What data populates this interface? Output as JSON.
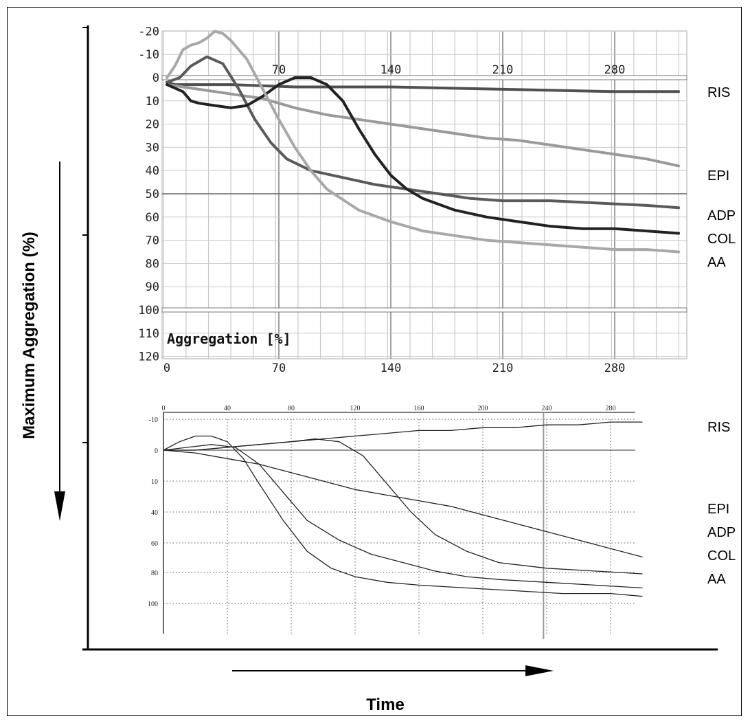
{
  "outer": {
    "ylabel": "Maximum  Aggregation (%)",
    "xlabel": "Time"
  },
  "chart_data": [
    {
      "type": "line",
      "x_ticks_top": [
        "70",
        "140",
        "210",
        "280"
      ],
      "x_ticks_bottom": [
        "0",
        "70",
        "140",
        "210",
        "280"
      ],
      "y_ticks": [
        "-20",
        "-10",
        "0",
        "10",
        "20",
        "30",
        "40",
        "50",
        "60",
        "70",
        "80",
        "90",
        "100",
        "110",
        "120"
      ],
      "y_axis_label": "Aggregation [%]",
      "xlim": [
        0,
        320
      ],
      "ylim": [
        -20,
        120
      ],
      "grid": true,
      "series": [
        {
          "name": "RIS",
          "color": "#505050",
          "x": [
            0,
            5,
            10,
            20,
            40,
            80,
            140,
            210,
            280,
            320
          ],
          "y": [
            2,
            3,
            3,
            3,
            3,
            4,
            4,
            5,
            6,
            6
          ]
        },
        {
          "name": "EPI",
          "color": "#9a9a9a",
          "x": [
            0,
            10,
            20,
            40,
            60,
            80,
            100,
            120,
            140,
            160,
            180,
            200,
            220,
            240,
            260,
            280,
            300,
            320
          ],
          "y": [
            3,
            4,
            5,
            7,
            9,
            13,
            16,
            18,
            20,
            22,
            24,
            26,
            27,
            29,
            31,
            33,
            35,
            38
          ]
        },
        {
          "name": "ADP",
          "color": "#5a5a5a",
          "x": [
            0,
            8,
            15,
            25,
            35,
            45,
            55,
            65,
            75,
            90,
            110,
            130,
            150,
            170,
            190,
            210,
            240,
            270,
            300,
            320
          ],
          "y": [
            2,
            0,
            -5,
            -9,
            -6,
            5,
            18,
            28,
            35,
            40,
            43,
            46,
            48,
            50,
            52,
            53,
            53,
            54,
            55,
            56
          ]
        },
        {
          "name": "COL",
          "color": "#222222",
          "x": [
            0,
            10,
            15,
            20,
            30,
            40,
            50,
            60,
            70,
            80,
            90,
            100,
            110,
            120,
            130,
            140,
            150,
            160,
            180,
            200,
            220,
            240,
            260,
            280,
            300,
            320
          ],
          "y": [
            3,
            6,
            10,
            11,
            12,
            13,
            12,
            8,
            3,
            0,
            0,
            3,
            10,
            22,
            33,
            42,
            48,
            52,
            57,
            60,
            62,
            64,
            65,
            65,
            66,
            67
          ]
        },
        {
          "name": "AA",
          "color": "#a8a8a8",
          "x": [
            0,
            5,
            10,
            15,
            20,
            25,
            30,
            35,
            40,
            50,
            60,
            70,
            80,
            90,
            100,
            120,
            140,
            160,
            180,
            200,
            220,
            240,
            260,
            280,
            300,
            320
          ],
          "y": [
            0,
            -5,
            -12,
            -14,
            -15,
            -17,
            -20,
            -19,
            -16,
            -8,
            5,
            18,
            30,
            40,
            48,
            57,
            62,
            66,
            68,
            70,
            71,
            72,
            73,
            74,
            74,
            75
          ]
        }
      ],
      "labels": [
        "RIS",
        "EPI",
        "ADP",
        "COL",
        "AA"
      ]
    },
    {
      "type": "line",
      "x_ticks": [
        "0",
        "40",
        "80",
        "120",
        "160",
        "200",
        "240",
        "280"
      ],
      "y_ticks": [
        "-10",
        "0",
        "10",
        "40",
        "60",
        "80",
        "100"
      ],
      "xlim": [
        0,
        300
      ],
      "grid": true,
      "series": [
        {
          "name": "RIS",
          "x": [
            0,
            20,
            40,
            60,
            80,
            100,
            120,
            140,
            160,
            180,
            200,
            220,
            240,
            260,
            280,
            300
          ],
          "y": [
            0,
            0,
            -1,
            -2,
            -3,
            -4,
            -5,
            -6,
            -7,
            -7,
            -8,
            -8,
            -9,
            -9,
            -10,
            -10
          ]
        },
        {
          "name": "EPI",
          "x": [
            0,
            20,
            40,
            60,
            80,
            100,
            120,
            140,
            160,
            180,
            200,
            220,
            240,
            260,
            280,
            300
          ],
          "y": [
            0,
            1,
            3,
            5,
            8,
            11,
            14,
            16,
            18,
            20,
            23,
            26,
            29,
            32,
            35,
            38
          ]
        },
        {
          "name": "ADP",
          "x": [
            0,
            15,
            30,
            45,
            60,
            75,
            90,
            110,
            130,
            150,
            170,
            190,
            210,
            240,
            270,
            300
          ],
          "y": [
            0,
            -1,
            -2,
            -1,
            5,
            15,
            25,
            32,
            37,
            40,
            43,
            45,
            46,
            47,
            48,
            49
          ]
        },
        {
          "name": "COL",
          "x": [
            0,
            20,
            40,
            60,
            80,
            95,
            110,
            125,
            140,
            155,
            170,
            190,
            210,
            240,
            270,
            300
          ],
          "y": [
            0,
            0,
            -1,
            -2,
            -3,
            -4,
            -3,
            2,
            12,
            22,
            30,
            36,
            40,
            42,
            43,
            44
          ]
        },
        {
          "name": "AA",
          "x": [
            0,
            10,
            20,
            30,
            40,
            50,
            60,
            75,
            90,
            105,
            120,
            140,
            160,
            190,
            220,
            250,
            280,
            300
          ],
          "y": [
            0,
            -3,
            -5,
            -5,
            -3,
            3,
            12,
            25,
            36,
            42,
            45,
            47,
            48,
            49,
            50,
            51,
            51,
            52
          ]
        }
      ],
      "labels": [
        "RIS",
        "EPI",
        "ADP",
        "COL",
        "AA"
      ]
    }
  ]
}
